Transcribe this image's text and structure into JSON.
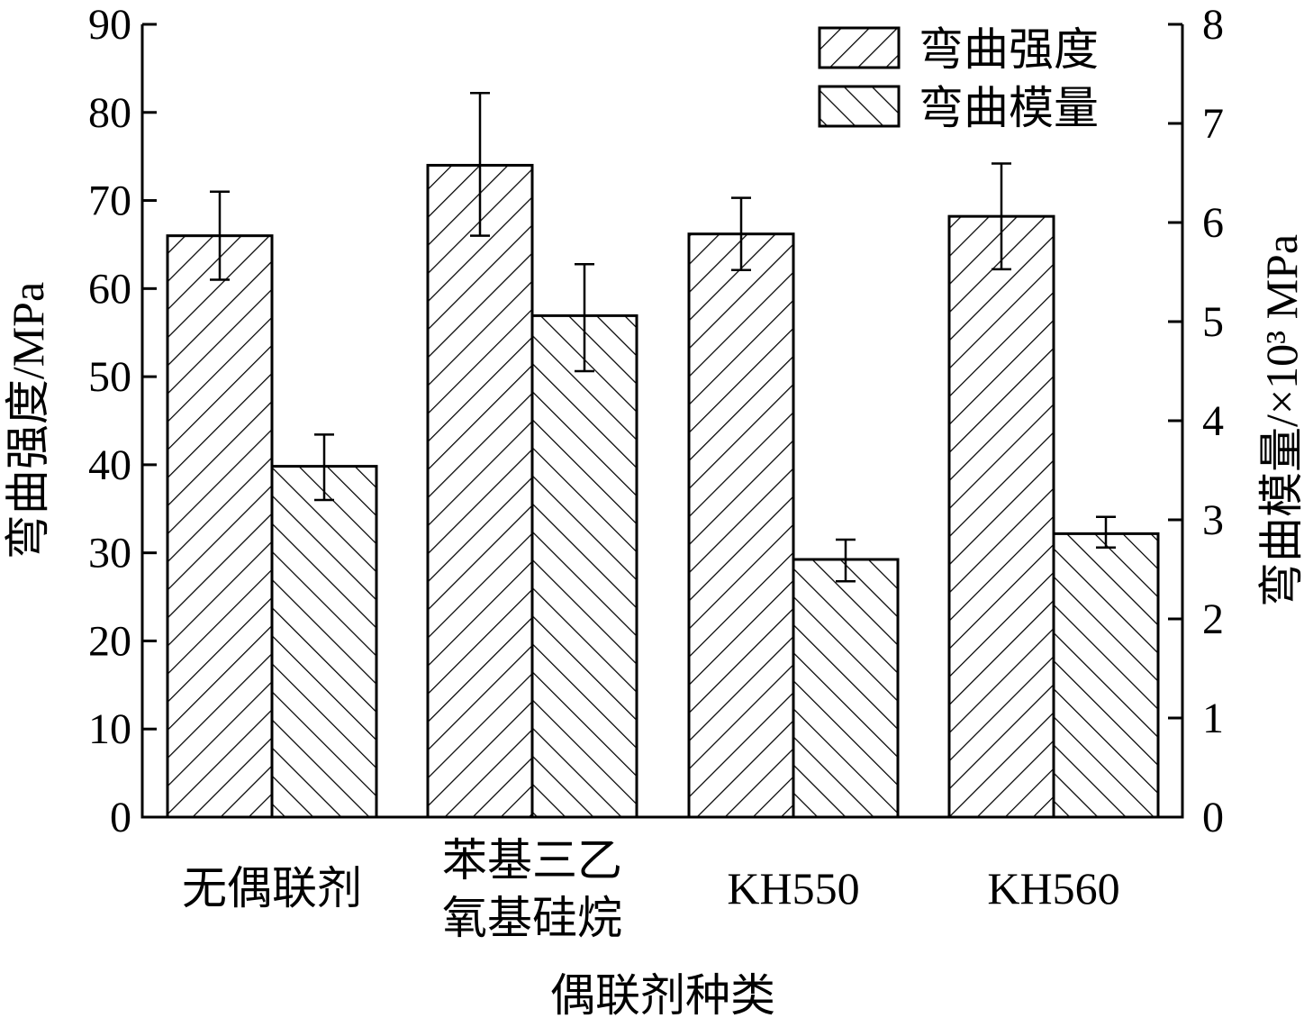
{
  "chart_data": {
    "type": "bar",
    "title": "",
    "xlabel": "偶联剂种类",
    "ylabel_left": "弯曲强度/MPa",
    "ylabel_right": "弯曲模量/×10³ MPa",
    "categories": [
      [
        "无偶联剂"
      ],
      [
        "苯基三乙",
        "氧基硅烷"
      ],
      [
        "KH550"
      ],
      [
        "KH560"
      ]
    ],
    "ylim_left": [
      0,
      90
    ],
    "ylim_right": [
      0,
      8
    ],
    "left_ticks": [
      "0",
      "10",
      "20",
      "30",
      "40",
      "50",
      "60",
      "70",
      "80",
      "90"
    ],
    "right_ticks": [
      "0",
      "1",
      "2",
      "3",
      "4",
      "5",
      "6",
      "7",
      "8"
    ],
    "grid": false,
    "legend_position": "top-right",
    "series": [
      {
        "name": "弯曲强度",
        "axis": "left",
        "hatch": "forward-diagonal",
        "values": [
          66,
          74,
          66.2,
          68.2
        ],
        "error_low": [
          61,
          66,
          62.1,
          62.2
        ],
        "error_high": [
          71,
          82.2,
          70.3,
          74.2
        ]
      },
      {
        "name": "弯曲模量",
        "axis": "right",
        "hatch": "backward-diagonal",
        "values": [
          3.54,
          5.06,
          2.6,
          2.86
        ],
        "error_low": [
          3.2,
          4.5,
          2.38,
          2.72
        ],
        "error_high": [
          3.86,
          5.58,
          2.8,
          3.03
        ]
      }
    ],
    "colors": {
      "stroke": "#000000",
      "fill": "#ffffff"
    }
  }
}
